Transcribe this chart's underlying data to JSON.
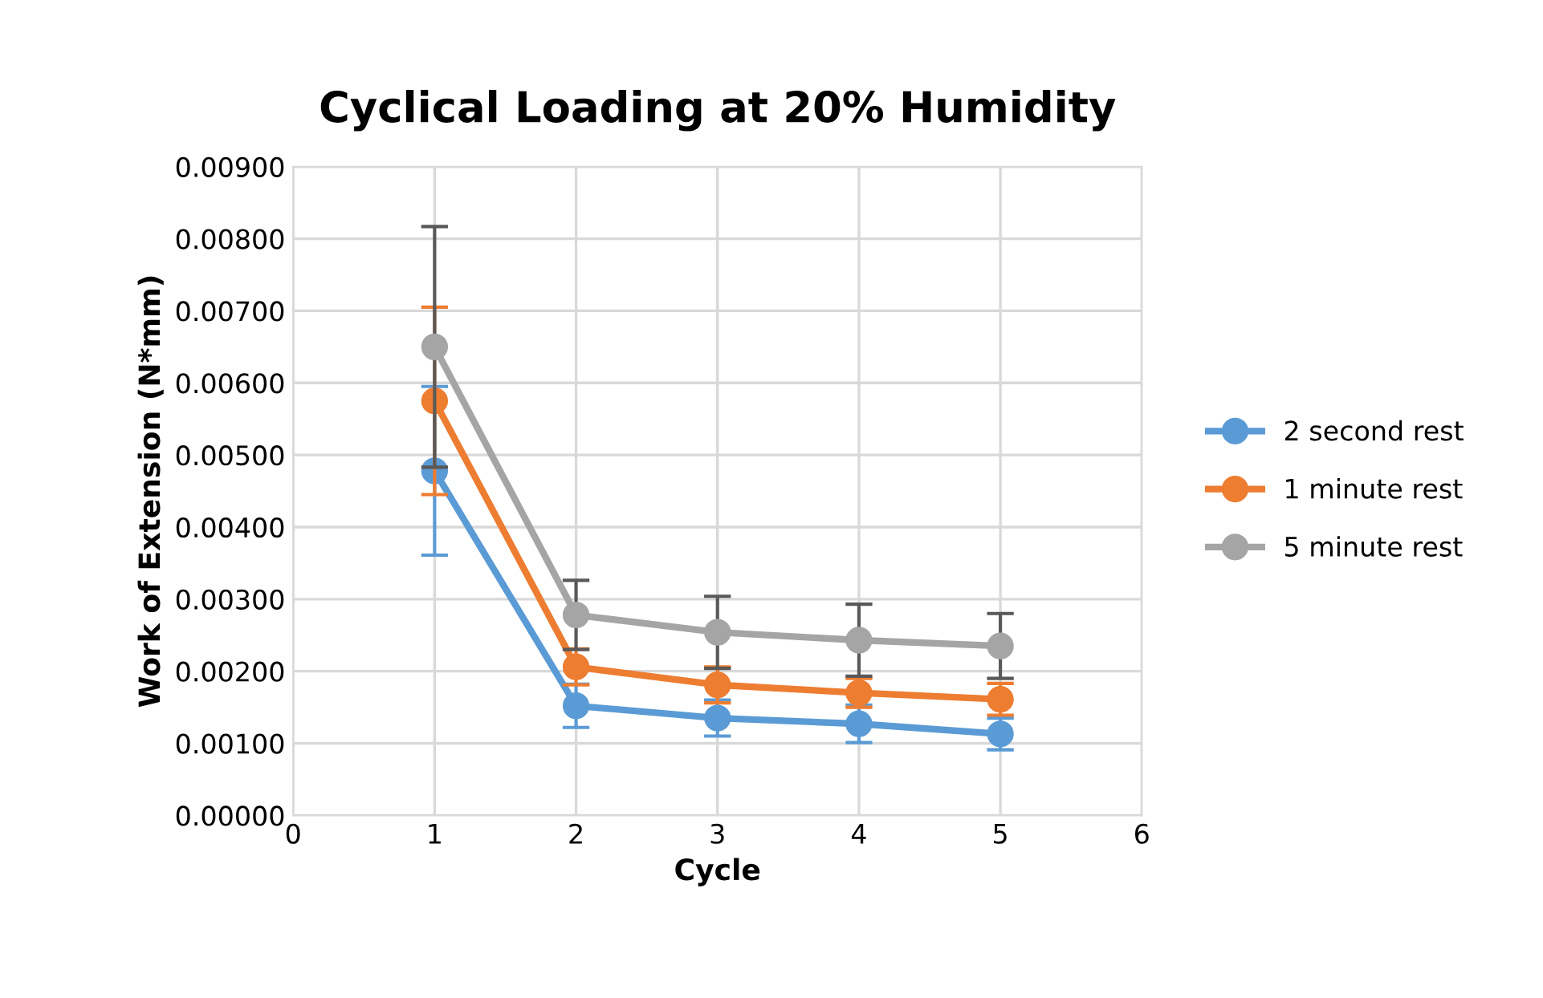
{
  "chart_data": {
    "type": "line",
    "title": "Cyclical Loading at 20% Humidity",
    "xlabel": "Cycle",
    "ylabel": "Work of Extension (N*mm)",
    "x": [
      1,
      2,
      3,
      4,
      5
    ],
    "series": [
      {
        "name": "2 second rest",
        "color": "#5b9bd5",
        "values": [
          0.00478,
          0.00152,
          0.00135,
          0.00127,
          0.00113
        ],
        "errors": [
          0.00117,
          0.0003,
          0.00025,
          0.00026,
          0.00022
        ]
      },
      {
        "name": "1 minute rest",
        "color": "#ed7d31",
        "values": [
          0.00575,
          0.00206,
          0.00181,
          0.0017,
          0.00161
        ],
        "errors": [
          0.0013,
          0.00025,
          0.00025,
          0.0002,
          0.00022
        ]
      },
      {
        "name": "5 minute rest",
        "color": "#a5a5a5",
        "values": [
          0.0065,
          0.00278,
          0.00254,
          0.00243,
          0.00235
        ],
        "errors": [
          0.00167,
          0.00048,
          0.0005,
          0.0005,
          0.00045
        ]
      }
    ],
    "xlim": [
      0,
      6
    ],
    "xticks": [
      0,
      1,
      2,
      3,
      4,
      5,
      6
    ],
    "ylim": [
      0,
      0.009
    ],
    "yticks": [
      {
        "value": 0,
        "label": "0.00000"
      },
      {
        "value": 0.001,
        "label": "0.00100"
      },
      {
        "value": 0.002,
        "label": "0.00200"
      },
      {
        "value": 0.003,
        "label": "0.00300"
      },
      {
        "value": 0.004,
        "label": "0.00400"
      },
      {
        "value": 0.005,
        "label": "0.00500"
      },
      {
        "value": 0.006,
        "label": "0.00600"
      },
      {
        "value": 0.007,
        "label": "0.00700"
      },
      {
        "value": 0.008,
        "label": "0.00800"
      },
      {
        "value": 0.009,
        "label": "0.00900"
      }
    ],
    "grid": true,
    "legend": "right",
    "marker": "circle",
    "line_style": "solid"
  }
}
